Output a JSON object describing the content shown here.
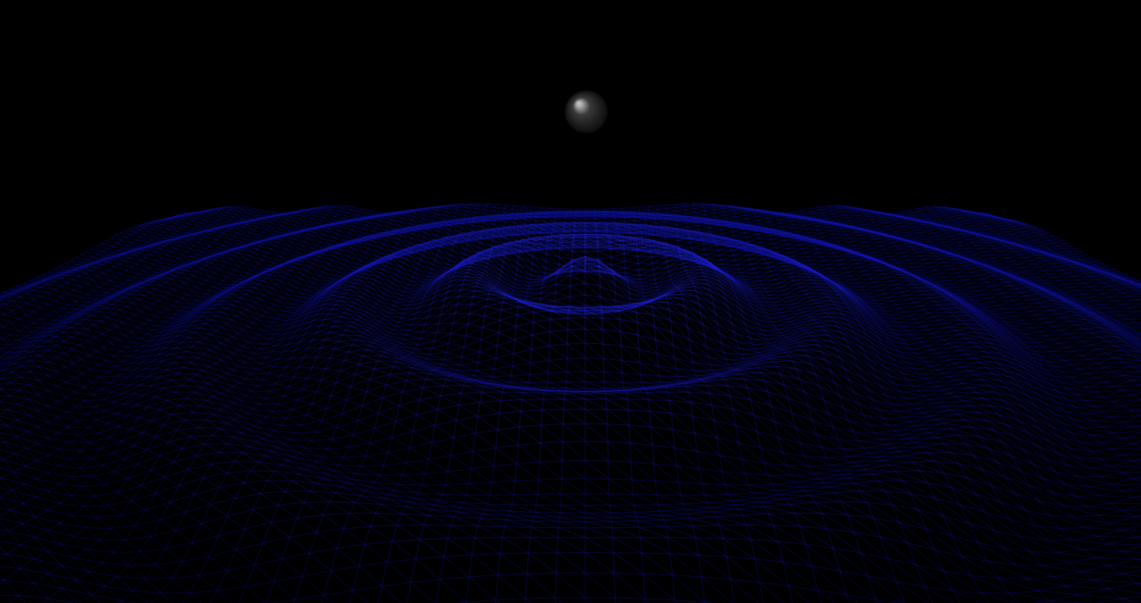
{
  "scene": {
    "background_color": "#000000",
    "mesh": {
      "kind": "wireframe-ripple-surface",
      "line_color": "#0a14d8",
      "highlight_color": "#2a3cff",
      "ripple_rings_visible": 6
    },
    "sphere": {
      "kind": "shaded-sphere",
      "base_color": "#3a3a3a",
      "highlight_color": "#bdbdbd",
      "shadow_color": "#0c0c0c"
    }
  }
}
